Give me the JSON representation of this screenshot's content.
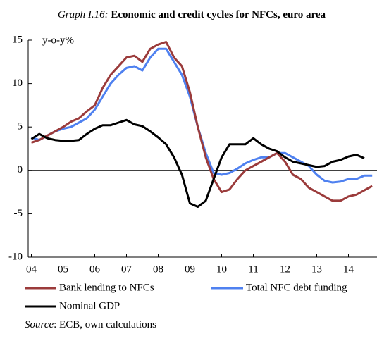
{
  "chart_data": {
    "type": "line",
    "title_label": "Graph I.16:",
    "title": "Economic and credit cycles for NFCs, euro area",
    "y_label": "y-o-y%",
    "source_label": "Source",
    "source": ": ECB, own calculations",
    "x": [
      2004,
      2004.25,
      2004.5,
      2004.75,
      2005,
      2005.25,
      2005.5,
      2005.75,
      2006,
      2006.25,
      2006.5,
      2006.75,
      2007,
      2007.25,
      2007.5,
      2007.75,
      2008,
      2008.25,
      2008.5,
      2008.75,
      2009,
      2009.25,
      2009.5,
      2009.75,
      2010,
      2010.25,
      2010.5,
      2010.75,
      2011,
      2011.25,
      2011.5,
      2011.75,
      2012,
      2012.25,
      2012.5,
      2012.75,
      2013,
      2013.25,
      2013.5,
      2013.75,
      2014,
      2014.25,
      2014.5,
      2014.75
    ],
    "series": [
      {
        "name": "Bank lending to NFCs",
        "color": "#9b3b3b",
        "values": [
          3.2,
          3.5,
          4,
          4.5,
          5,
          5.6,
          6,
          6.8,
          7.5,
          9.5,
          11,
          12,
          13,
          13.2,
          12.5,
          14,
          14.5,
          14.8,
          13,
          12,
          9,
          5,
          1.5,
          -1,
          -2.5,
          -2.2,
          -1,
          0,
          0.5,
          1,
          1.5,
          2,
          1,
          -0.5,
          -1,
          -2,
          -2.5,
          -3,
          -3.5,
          -3.5,
          -3,
          -2.8,
          -2.3,
          -1.8
        ]
      },
      {
        "name": "Total NFC debt funding",
        "color": "#4f81f0",
        "values": [
          3.8,
          3.5,
          4,
          4.5,
          4.8,
          5,
          5.5,
          6,
          7,
          8.5,
          10,
          11,
          11.8,
          12,
          11.5,
          13,
          14,
          14,
          12.5,
          11,
          8.5,
          5,
          2,
          -0.3,
          -0.5,
          -0.3,
          0.2,
          0.8,
          1.2,
          1.5,
          1.5,
          2,
          2,
          1.5,
          1,
          0.5,
          -0.5,
          -1.2,
          -1.4,
          -1.3,
          -1,
          -1,
          -0.6,
          -0.6
        ]
      },
      {
        "name": "Nominal GDP",
        "color": "#000000",
        "values": [
          3.6,
          4.2,
          3.7,
          3.5,
          3.4,
          3.4,
          3.5,
          4.2,
          4.8,
          5.2,
          5.2,
          5.5,
          5.8,
          5.3,
          5.1,
          4.5,
          3.8,
          3,
          1.5,
          -0.5,
          -3.8,
          -4.2,
          -3.5,
          -1,
          1.5,
          3,
          3,
          3,
          3.7,
          3,
          2.5,
          2.2,
          1.5,
          1,
          0.8,
          0.6,
          0.4,
          0.5,
          1,
          1.2,
          1.6,
          1.8,
          1.4,
          null
        ]
      }
    ],
    "xlim": [
      2003.9,
      2014.9
    ],
    "xticks": [
      {
        "value": 2004,
        "label": "04"
      },
      {
        "value": 2005,
        "label": "05"
      },
      {
        "value": 2006,
        "label": "06"
      },
      {
        "value": 2007,
        "label": "07"
      },
      {
        "value": 2008,
        "label": "08"
      },
      {
        "value": 2009,
        "label": "09"
      },
      {
        "value": 2010,
        "label": "10"
      },
      {
        "value": 2011,
        "label": "11"
      },
      {
        "value": 2012,
        "label": "12"
      },
      {
        "value": 2013,
        "label": "13"
      },
      {
        "value": 2014,
        "label": "14"
      }
    ],
    "ylim": [
      -10,
      15
    ],
    "yticks": [
      -10,
      -5,
      0,
      5,
      10,
      15
    ]
  }
}
